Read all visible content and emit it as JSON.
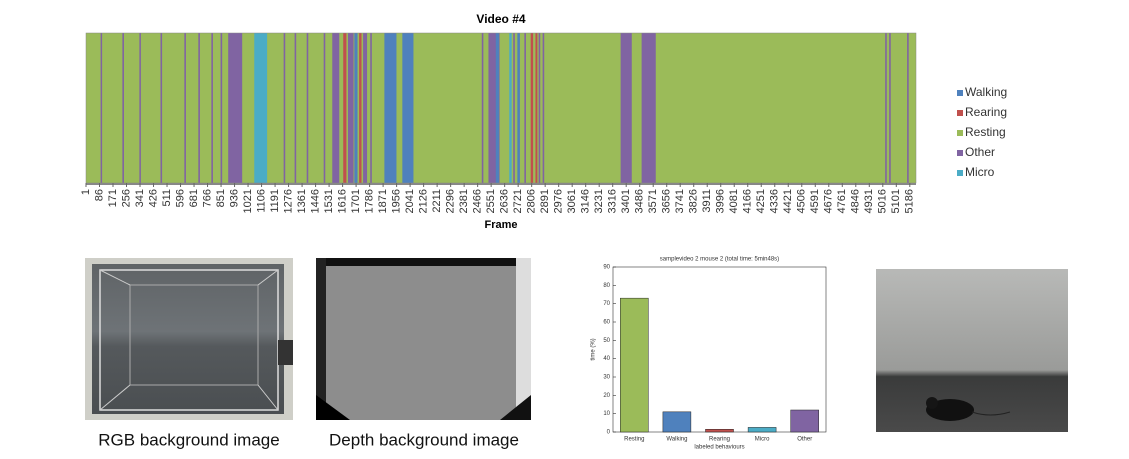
{
  "chart_data": [
    {
      "type": "timeline",
      "title": "Video #4",
      "x_label": "Frame",
      "xlim": [
        1,
        5225
      ],
      "xticks": [
        1,
        86,
        171,
        256,
        341,
        426,
        511,
        596,
        681,
        766,
        851,
        936,
        1021,
        1106,
        1191,
        1276,
        1361,
        1446,
        1531,
        1616,
        1701,
        1786,
        1871,
        1956,
        2041,
        2126,
        2211,
        2296,
        2381,
        2466,
        2551,
        2636,
        2721,
        2806,
        2891,
        2976,
        3061,
        3146,
        3231,
        3316,
        3401,
        3486,
        3571,
        3656,
        3741,
        3826,
        3911,
        3996,
        4081,
        4166,
        4251,
        4336,
        4421,
        4506,
        4591,
        4676,
        4761,
        4846,
        4931,
        5016,
        5101,
        5186
      ],
      "series": [
        {
          "name": "Walking",
          "color": "#4f81bd",
          "values": [
            [
              1690,
              1710
            ],
            [
              1879,
              1955
            ],
            [
              1992,
              2062
            ],
            [
              2580,
              2600
            ],
            [
              2716,
              2732
            ]
          ]
        },
        {
          "name": "Rearing",
          "color": "#c0504d",
          "values": [
            [
              1620,
              1640
            ],
            [
              1720,
              1735
            ],
            [
              2800,
              2815
            ],
            [
              2830,
              2842
            ]
          ]
        },
        {
          "name": "Resting",
          "color": "#9bbb59",
          "values": [
            [
              1,
              5225
            ]
          ]
        },
        {
          "name": "Other",
          "color": "#8064a2",
          "values": [
            [
              93,
              102
            ],
            [
              230,
              240
            ],
            [
              337,
              346
            ],
            [
              470,
              480
            ],
            [
              620,
              630
            ],
            [
              708,
              718
            ],
            [
              790,
              800
            ],
            [
              848,
              858
            ],
            [
              896,
              984
            ],
            [
              1245,
              1255
            ],
            [
              1314,
              1324
            ],
            [
              1390,
              1400
            ],
            [
              1497,
              1507
            ],
            [
              1551,
              1595
            ],
            [
              1650,
              1685
            ],
            [
              1745,
              1770
            ],
            [
              1790,
              1800
            ],
            [
              2492,
              2502
            ],
            [
              2534,
              2604
            ],
            [
              2690,
              2700
            ],
            [
              2760,
              2770
            ],
            [
              2850,
              2860
            ],
            [
              2875,
              2885
            ],
            [
              3366,
              3436
            ],
            [
              3498,
              3587
            ],
            [
              5031,
              5041
            ],
            [
              5056,
              5066
            ],
            [
              5169,
              5179
            ]
          ]
        },
        {
          "name": "Micro",
          "color": "#4bacc6",
          "values": [
            [
              1060,
              1141
            ],
            [
              2665,
              2680
            ]
          ]
        }
      ]
    },
    {
      "type": "bar",
      "title": "samplevideo 2 mouse 2 (total time: 5min48s)",
      "x_label": "labeled behaviours",
      "y_label": "time (%)",
      "categories": [
        "Resting",
        "Walking",
        "Rearing",
        "Micro",
        "Other"
      ],
      "values": [
        73,
        11,
        1.5,
        2.5,
        12
      ],
      "colors": [
        "#9bbb59",
        "#4f81bd",
        "#c0504d",
        "#4bacc6",
        "#8064a2"
      ],
      "ylim": [
        0,
        90
      ],
      "yticks": [
        0,
        10,
        20,
        30,
        40,
        50,
        60,
        70,
        80,
        90
      ]
    }
  ],
  "images": {
    "rgb_caption": "RGB background image",
    "depth_caption": "Depth background image"
  }
}
